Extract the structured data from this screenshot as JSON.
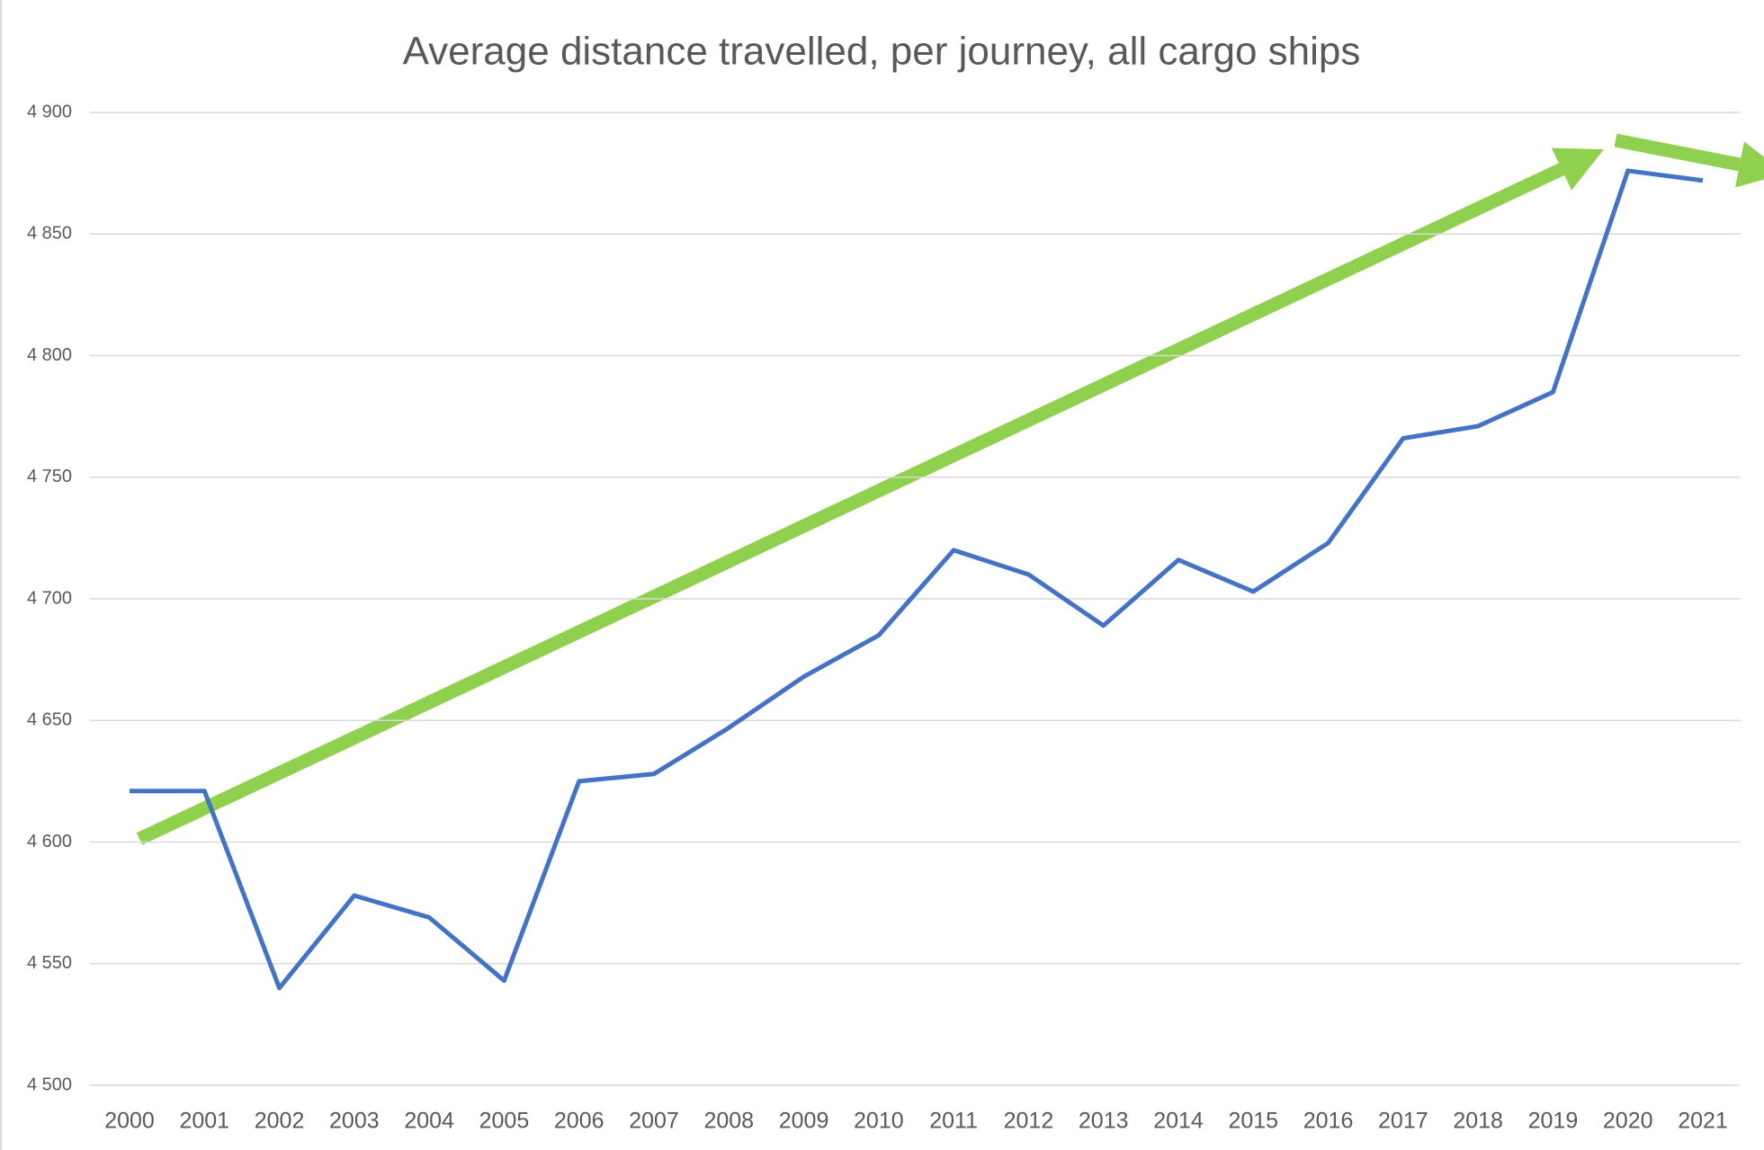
{
  "chart_data": {
    "type": "line",
    "title": "Average distance travelled, per journey, all cargo ships",
    "categories": [
      "2000",
      "2001",
      "2002",
      "2003",
      "2004",
      "2005",
      "2006",
      "2007",
      "2008",
      "2009",
      "2010",
      "2011",
      "2012",
      "2013",
      "2014",
      "2015",
      "2016",
      "2017",
      "2018",
      "2019",
      "2020",
      "2021"
    ],
    "series": [
      {
        "color": "#4472c4",
        "values": [
          4621,
          4621,
          4540,
          4578,
          4569,
          4543,
          4625,
          4628,
          4647,
          4668,
          4685,
          4720,
          4710,
          4689,
          4716,
          4703,
          4723,
          4766,
          4771,
          4785,
          4876,
          4872
        ]
      }
    ],
    "ylim": [
      4500,
      4900
    ],
    "yticks": [
      {
        "value": 4500,
        "label": "4 500"
      },
      {
        "value": 4550,
        "label": "4 550"
      },
      {
        "value": 4600,
        "label": "4 600"
      },
      {
        "value": 4650,
        "label": "4 650"
      },
      {
        "value": 4700,
        "label": "4 700"
      },
      {
        "value": 4750,
        "label": "4 750"
      },
      {
        "value": 4800,
        "label": "4 800"
      },
      {
        "value": 4850,
        "label": "4 850"
      },
      {
        "value": 4900,
        "label": "4 900"
      }
    ],
    "grid": true
  }
}
